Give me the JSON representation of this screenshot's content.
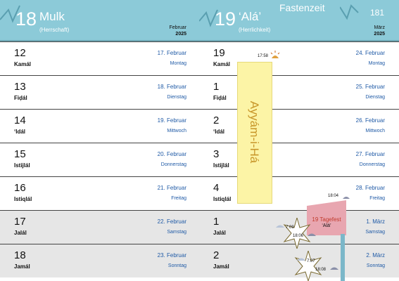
{
  "header": {
    "left": {
      "number": "18",
      "name": "Mulk",
      "subtitle": "(Herrschaft)",
      "greg_month": "Februar",
      "greg_year": "2025"
    },
    "right": {
      "number": "19",
      "name": "‘Alá’",
      "subtitle": "(Herrlichkeit)",
      "greg_month": "März",
      "greg_year": "2025"
    },
    "season": "Fastenzeit",
    "page_number": "181"
  },
  "left_rows": [
    {
      "day": "12",
      "name": "Kamál",
      "gdate": "17. Februar",
      "gweekday": "Montag"
    },
    {
      "day": "13",
      "name": "Fiḍál",
      "gdate": "18. Februar",
      "gweekday": "Dienstag"
    },
    {
      "day": "14",
      "name": "‘Idál",
      "gdate": "19. Februar",
      "gweekday": "Mittwoch"
    },
    {
      "day": "15",
      "name": "Istijlál",
      "gdate": "20. Februar",
      "gweekday": "Donnerstag"
    },
    {
      "day": "16",
      "name": "Istiqlál",
      "gdate": "21. Februar",
      "gweekday": "Freitag"
    },
    {
      "day": "17",
      "name": "Jalál",
      "gdate": "22. Februar",
      "gweekday": "Samstag"
    },
    {
      "day": "18",
      "name": "Jamál",
      "gdate": "23. Februar",
      "gweekday": "Sonntag"
    }
  ],
  "right_rows": [
    {
      "day": "19",
      "name": "Kamál",
      "gdate": "24. Februar",
      "gweekday": "Montag"
    },
    {
      "day": "1",
      "name": "Fiḍál",
      "gdate": "25. Februar",
      "gweekday": "Dienstag"
    },
    {
      "day": "2",
      "name": "‘Idál",
      "gdate": "26. Februar",
      "gweekday": "Mittwoch"
    },
    {
      "day": "3",
      "name": "Istijlál",
      "gdate": "27. Februar",
      "gweekday": "Donnerstag"
    },
    {
      "day": "4",
      "name": "Istiqlál",
      "gdate": "28. Februar",
      "gweekday": "Freitag"
    },
    {
      "day": "1",
      "name": "Jalál",
      "gdate": "1. März",
      "gweekday": "Samstag"
    },
    {
      "day": "2",
      "name": "Jamál",
      "gdate": "2. März",
      "gweekday": "Sonntag"
    }
  ],
  "ayyam_label": "Ayyám-i-Há",
  "times": {
    "sunset_24feb": "17:58",
    "sunset_28feb": "18:04",
    "sunrise_1mar": "7:09",
    "sunset_1mar": "18:06",
    "sunrise_2mar": "7:07",
    "sunset_2mar": "18:08"
  },
  "feast": {
    "title": "19 Tagefest",
    "subtitle": "‘Alá’"
  },
  "colors": {
    "header_bg": "#8ccad8",
    "ayyam_bg": "#fcf4a6",
    "feast_bg": "#e8a6b0",
    "greg_text": "#1f5aa6",
    "gray_row": "#e6e6e6"
  }
}
